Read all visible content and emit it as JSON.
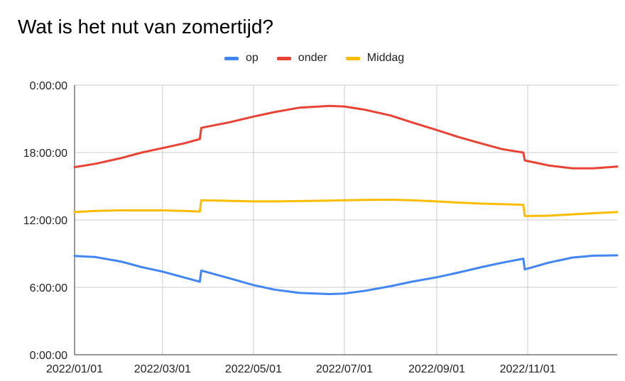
{
  "chart_data": {
    "type": "line",
    "title": "Wat is het nut van zomertijd?",
    "xlabel": "",
    "ylabel": "",
    "legend_position": "top",
    "grid": true,
    "x_ticks": [
      "2022/01/01",
      "2022/03/01",
      "2022/05/01",
      "2022/07/01",
      "2022/09/01",
      "2022/11/01"
    ],
    "x_range": [
      "2022-01-01",
      "2022-12-31"
    ],
    "y_ticks": [
      "0:00:00",
      "6:00:00",
      "12:00:00",
      "18:00:00",
      "0:00:00"
    ],
    "y_range_hours": [
      0,
      24
    ],
    "dst_start": "2022-03-27",
    "dst_end": "2022-10-30",
    "series": [
      {
        "name": "op",
        "color": "#4285f4",
        "points": [
          [
            "2022-01-01",
            8.8
          ],
          [
            "2022-01-15",
            8.7
          ],
          [
            "2022-02-01",
            8.3
          ],
          [
            "2022-02-15",
            7.8
          ],
          [
            "2022-03-01",
            7.4
          ],
          [
            "2022-03-15",
            6.9
          ],
          [
            "2022-03-26",
            6.5
          ],
          [
            "2022-03-27",
            7.5
          ],
          [
            "2022-04-15",
            6.8
          ],
          [
            "2022-05-01",
            6.2
          ],
          [
            "2022-05-15",
            5.8
          ],
          [
            "2022-06-01",
            5.5
          ],
          [
            "2022-06-21",
            5.4
          ],
          [
            "2022-07-01",
            5.45
          ],
          [
            "2022-07-15",
            5.7
          ],
          [
            "2022-08-01",
            6.1
          ],
          [
            "2022-08-15",
            6.5
          ],
          [
            "2022-09-01",
            6.9
          ],
          [
            "2022-09-15",
            7.3
          ],
          [
            "2022-10-01",
            7.8
          ],
          [
            "2022-10-15",
            8.2
          ],
          [
            "2022-10-29",
            8.55
          ],
          [
            "2022-10-30",
            7.6
          ],
          [
            "2022-11-15",
            8.2
          ],
          [
            "2022-12-01",
            8.65
          ],
          [
            "2022-12-15",
            8.82
          ],
          [
            "2022-12-31",
            8.85
          ]
        ]
      },
      {
        "name": "onder",
        "color": "#ea4335",
        "points": [
          [
            "2022-01-01",
            16.7
          ],
          [
            "2022-01-15",
            17.0
          ],
          [
            "2022-02-01",
            17.5
          ],
          [
            "2022-02-15",
            18.0
          ],
          [
            "2022-03-01",
            18.4
          ],
          [
            "2022-03-15",
            18.8
          ],
          [
            "2022-03-26",
            19.2
          ],
          [
            "2022-03-27",
            20.2
          ],
          [
            "2022-04-15",
            20.7
          ],
          [
            "2022-05-01",
            21.2
          ],
          [
            "2022-05-15",
            21.6
          ],
          [
            "2022-06-01",
            22.0
          ],
          [
            "2022-06-21",
            22.15
          ],
          [
            "2022-07-01",
            22.1
          ],
          [
            "2022-07-15",
            21.8
          ],
          [
            "2022-08-01",
            21.3
          ],
          [
            "2022-08-15",
            20.7
          ],
          [
            "2022-09-01",
            20.0
          ],
          [
            "2022-09-15",
            19.4
          ],
          [
            "2022-10-01",
            18.8
          ],
          [
            "2022-10-15",
            18.3
          ],
          [
            "2022-10-29",
            18.0
          ],
          [
            "2022-10-30",
            17.3
          ],
          [
            "2022-11-15",
            16.85
          ],
          [
            "2022-12-01",
            16.6
          ],
          [
            "2022-12-15",
            16.6
          ],
          [
            "2022-12-31",
            16.75
          ]
        ]
      },
      {
        "name": "Middag",
        "color": "#fbbc04",
        "points": [
          [
            "2022-01-01",
            12.7
          ],
          [
            "2022-01-15",
            12.8
          ],
          [
            "2022-02-01",
            12.85
          ],
          [
            "2022-02-15",
            12.85
          ],
          [
            "2022-03-01",
            12.85
          ],
          [
            "2022-03-15",
            12.8
          ],
          [
            "2022-03-26",
            12.75
          ],
          [
            "2022-03-27",
            13.75
          ],
          [
            "2022-04-15",
            13.7
          ],
          [
            "2022-05-01",
            13.65
          ],
          [
            "2022-05-15",
            13.65
          ],
          [
            "2022-06-01",
            13.68
          ],
          [
            "2022-06-21",
            13.72
          ],
          [
            "2022-07-01",
            13.75
          ],
          [
            "2022-07-15",
            13.78
          ],
          [
            "2022-08-01",
            13.8
          ],
          [
            "2022-08-15",
            13.75
          ],
          [
            "2022-09-01",
            13.65
          ],
          [
            "2022-09-15",
            13.55
          ],
          [
            "2022-10-01",
            13.45
          ],
          [
            "2022-10-15",
            13.4
          ],
          [
            "2022-10-29",
            13.35
          ],
          [
            "2022-10-30",
            12.35
          ],
          [
            "2022-11-15",
            12.38
          ],
          [
            "2022-12-01",
            12.5
          ],
          [
            "2022-12-15",
            12.6
          ],
          [
            "2022-12-31",
            12.7
          ]
        ]
      }
    ]
  }
}
